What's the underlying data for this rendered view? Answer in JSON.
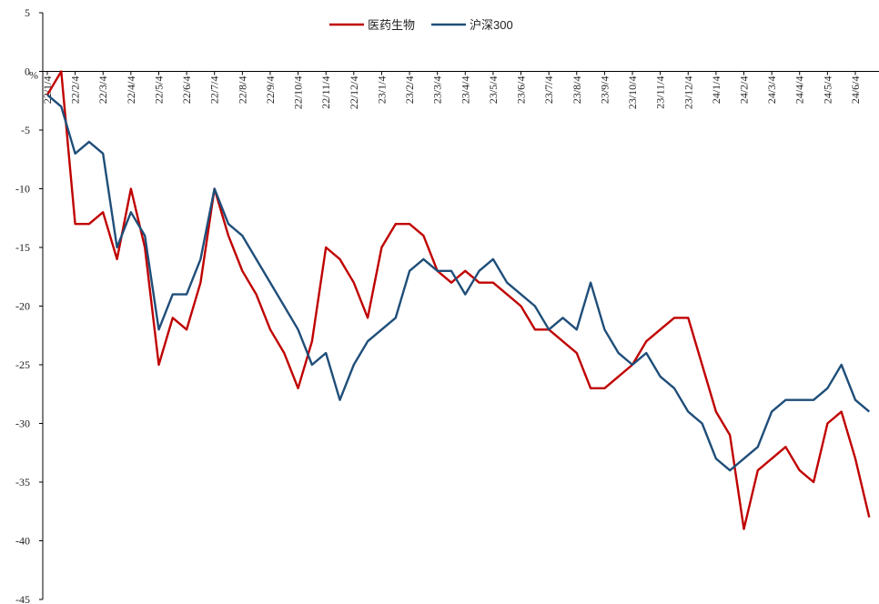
{
  "chart_data": {
    "type": "line",
    "y_label": "%",
    "categories": [
      "22/1/4",
      null,
      "22/2/4",
      null,
      "22/3/4",
      null,
      "22/4/4",
      null,
      "22/5/4",
      null,
      "22/6/4",
      null,
      "22/7/4",
      null,
      "22/8/4",
      null,
      "22/9/4",
      null,
      "22/10/4",
      null,
      "22/11/4",
      null,
      "22/12/4",
      null,
      "23/1/4",
      null,
      "23/2/4",
      null,
      "23/3/4",
      null,
      "23/4/4",
      null,
      "23/5/4",
      null,
      "23/6/4",
      null,
      "23/7/4",
      null,
      "23/8/4",
      null,
      "23/9/4",
      null,
      "23/10/4",
      null,
      "23/11/4",
      null,
      "23/12/4",
      null,
      "24/1/4",
      null,
      "24/2/4",
      null,
      "24/3/4",
      null,
      "24/4/4",
      null,
      "24/5/4",
      null,
      "24/6/4",
      null
    ],
    "series": [
      {
        "name": "医药生物",
        "color": "#c00000",
        "values": [
          -2,
          0,
          -13,
          -13,
          -12,
          -16,
          -10,
          -15,
          -25,
          -21,
          -22,
          -18,
          -10,
          -14,
          -17,
          -19,
          -22,
          -24,
          -27,
          -23,
          -15,
          -16,
          -18,
          -21,
          -15,
          -13,
          -13,
          -14,
          -17,
          -18,
          -17,
          -18,
          -18,
          -19,
          -20,
          -22,
          -22,
          -23,
          -24,
          -27,
          -27,
          -26,
          -25,
          -23,
          -22,
          -21,
          -21,
          -25,
          -29,
          -31,
          -39,
          -34,
          -33,
          -32,
          -34,
          -35,
          -30,
          -29,
          -33,
          -38
        ]
      },
      {
        "name": "沪深300",
        "color": "#1f4e79",
        "values": [
          -2,
          -3,
          -7,
          -6,
          -7,
          -15,
          -12,
          -14,
          -22,
          -19,
          -19,
          -16,
          -10,
          -13,
          -14,
          -16,
          -18,
          -20,
          -22,
          -25,
          -24,
          -28,
          -25,
          -23,
          -22,
          -21,
          -17,
          -16,
          -17,
          -17,
          -19,
          -17,
          -16,
          -18,
          -19,
          -20,
          -22,
          -21,
          -22,
          -18,
          -22,
          -24,
          -25,
          -24,
          -26,
          -27,
          -29,
          -30,
          -33,
          -34,
          -33,
          -32,
          -29,
          -28,
          -28,
          -28,
          -27,
          -25,
          -28,
          -29
        ]
      }
    ],
    "ylim": [
      -45,
      5
    ],
    "yticks": [
      -45,
      -40,
      -35,
      -30,
      -25,
      -20,
      -15,
      -10,
      -5,
      0,
      5
    ],
    "legend": "top"
  }
}
